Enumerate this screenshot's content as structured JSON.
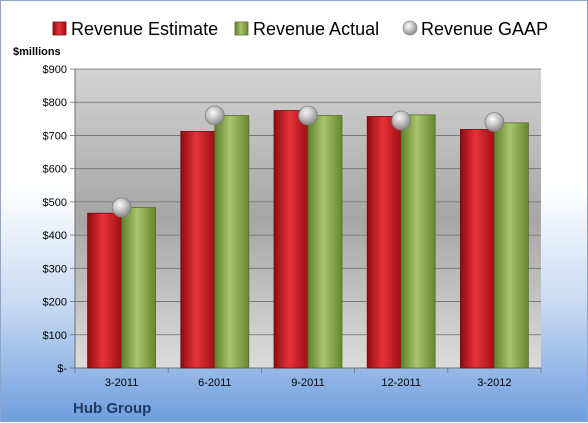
{
  "chart_data": {
    "type": "bar",
    "ylabel": "$millions",
    "footer": "Hub Group",
    "categories": [
      "3-2011",
      "6-2011",
      "9-2011",
      "12-2011",
      "3-2012"
    ],
    "series": [
      {
        "name": "Revenue Estimate",
        "kind": "bar",
        "color": "#d21f26",
        "values": [
          466,
          712,
          775,
          757,
          718
        ]
      },
      {
        "name": "Revenue Actual",
        "kind": "bar",
        "color": "#8db04c",
        "values": [
          483,
          760,
          760,
          762,
          738
        ]
      },
      {
        "name": "Revenue GAAP",
        "kind": "marker",
        "color": "#b4b4b4",
        "values": [
          483,
          760,
          760,
          745,
          740
        ]
      }
    ],
    "ylim": [
      0,
      900
    ],
    "yticks": [
      0,
      100,
      200,
      300,
      400,
      500,
      600,
      700,
      800,
      900
    ],
    "ytick_labels": [
      "$-",
      "$100",
      "$200",
      "$300",
      "$400",
      "$500",
      "$600",
      "$700",
      "$800",
      "$900"
    ],
    "grid": true,
    "legend_position": "top"
  }
}
